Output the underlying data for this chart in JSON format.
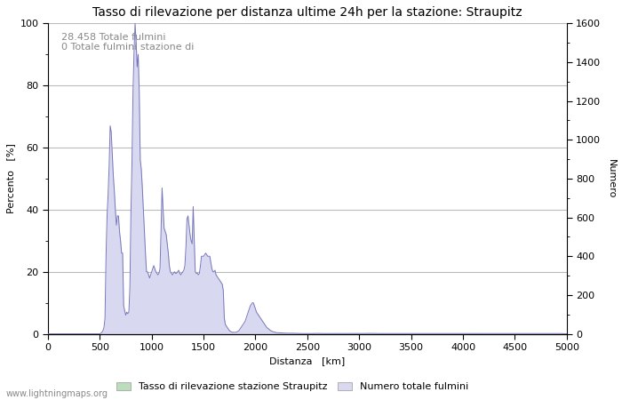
{
  "title": "Tasso di rilevazione per distanza ultime 24h per la stazione: Straupitz",
  "xlabel": "Distanza   [km]",
  "ylabel_left": "Percento   [%]",
  "ylabel_right": "Numero",
  "annotation_line1": "28.458 Totale fulmini",
  "annotation_line2": "0 Totale fulmini stazione di",
  "xlim": [
    0,
    5000
  ],
  "ylim_left": [
    0,
    100
  ],
  "ylim_right": [
    0,
    1600
  ],
  "xticks": [
    0,
    500,
    1000,
    1500,
    2000,
    2500,
    3000,
    3500,
    4000,
    4500,
    5000
  ],
  "yticks_left": [
    0,
    20,
    40,
    60,
    80,
    100
  ],
  "yticks_right": [
    0,
    200,
    400,
    600,
    800,
    1000,
    1200,
    1400,
    1600
  ],
  "background_color": "#ffffff",
  "grid_color": "#bbbbbb",
  "line_color": "#7777bb",
  "fill_color_blue": "#d8d8f0",
  "fill_color_green": "#bbddbb",
  "legend_label_green": "Tasso di rilevazione stazione Straupitz",
  "legend_label_blue": "Numero totale fulmini",
  "watermark": "www.lightningmaps.org",
  "title_fontsize": 10,
  "label_fontsize": 8,
  "tick_fontsize": 8,
  "annot_fontsize": 8,
  "percent_data": [
    [
      0,
      0
    ],
    [
      10,
      0
    ],
    [
      20,
      0
    ],
    [
      30,
      0
    ],
    [
      40,
      0
    ],
    [
      50,
      0
    ],
    [
      60,
      0
    ],
    [
      70,
      0
    ],
    [
      80,
      0
    ],
    [
      90,
      0
    ],
    [
      100,
      0
    ],
    [
      110,
      0
    ],
    [
      120,
      0
    ],
    [
      130,
      0
    ],
    [
      140,
      0
    ],
    [
      150,
      0
    ],
    [
      160,
      0
    ],
    [
      170,
      0
    ],
    [
      180,
      0
    ],
    [
      190,
      0
    ],
    [
      200,
      0
    ],
    [
      210,
      0
    ],
    [
      220,
      0
    ],
    [
      230,
      0
    ],
    [
      240,
      0
    ],
    [
      250,
      0
    ],
    [
      260,
      0
    ],
    [
      270,
      0
    ],
    [
      280,
      0
    ],
    [
      290,
      0
    ],
    [
      300,
      0
    ],
    [
      310,
      0
    ],
    [
      320,
      0
    ],
    [
      330,
      0
    ],
    [
      340,
      0
    ],
    [
      350,
      0
    ],
    [
      360,
      0
    ],
    [
      370,
      0
    ],
    [
      380,
      0
    ],
    [
      390,
      0
    ],
    [
      400,
      0
    ],
    [
      410,
      0
    ],
    [
      420,
      0
    ],
    [
      430,
      0
    ],
    [
      440,
      0
    ],
    [
      450,
      0
    ],
    [
      460,
      0
    ],
    [
      470,
      0
    ],
    [
      480,
      0
    ],
    [
      490,
      0
    ],
    [
      500,
      0
    ],
    [
      510,
      0.2
    ],
    [
      520,
      0.5
    ],
    [
      530,
      1.0
    ],
    [
      540,
      2.0
    ],
    [
      550,
      5.0
    ],
    [
      560,
      25.0
    ],
    [
      570,
      38.0
    ],
    [
      580,
      45.0
    ],
    [
      590,
      54.0
    ],
    [
      600,
      67.0
    ],
    [
      610,
      65.0
    ],
    [
      620,
      58.0
    ],
    [
      630,
      51.0
    ],
    [
      640,
      46.0
    ],
    [
      650,
      40.0
    ],
    [
      660,
      35.0
    ],
    [
      670,
      38.0
    ],
    [
      680,
      38.0
    ],
    [
      690,
      33.0
    ],
    [
      700,
      30.0
    ],
    [
      710,
      26.0
    ],
    [
      720,
      26.0
    ],
    [
      730,
      9.0
    ],
    [
      740,
      7.5
    ],
    [
      750,
      6.0
    ],
    [
      760,
      7.0
    ],
    [
      770,
      6.5
    ],
    [
      780,
      7.0
    ],
    [
      790,
      15.0
    ],
    [
      800,
      39.0
    ],
    [
      810,
      55.0
    ],
    [
      820,
      78.0
    ],
    [
      830,
      91.0
    ],
    [
      840,
      100.0
    ],
    [
      850,
      94.0
    ],
    [
      860,
      86.0
    ],
    [
      870,
      90.0
    ],
    [
      880,
      78.0
    ],
    [
      890,
      56.0
    ],
    [
      900,
      53.0
    ],
    [
      910,
      47.0
    ],
    [
      920,
      40.0
    ],
    [
      930,
      33.0
    ],
    [
      940,
      26.0
    ],
    [
      950,
      20.0
    ],
    [
      960,
      20.0
    ],
    [
      970,
      19.0
    ],
    [
      980,
      18.0
    ],
    [
      990,
      19.0
    ],
    [
      1000,
      20.0
    ],
    [
      1010,
      21.0
    ],
    [
      1020,
      22.0
    ],
    [
      1030,
      21.0
    ],
    [
      1040,
      20.0
    ],
    [
      1050,
      19.5
    ],
    [
      1060,
      19.0
    ],
    [
      1070,
      19.5
    ],
    [
      1080,
      21.0
    ],
    [
      1090,
      33.0
    ],
    [
      1100,
      47.0
    ],
    [
      1110,
      40.0
    ],
    [
      1120,
      34.0
    ],
    [
      1130,
      33.0
    ],
    [
      1140,
      32.0
    ],
    [
      1150,
      29.0
    ],
    [
      1160,
      26.0
    ],
    [
      1170,
      22.0
    ],
    [
      1180,
      20.0
    ],
    [
      1190,
      19.5
    ],
    [
      1200,
      19.0
    ],
    [
      1210,
      19.5
    ],
    [
      1220,
      20.0
    ],
    [
      1230,
      19.5
    ],
    [
      1240,
      19.5
    ],
    [
      1250,
      20.0
    ],
    [
      1260,
      20.5
    ],
    [
      1270,
      19.5
    ],
    [
      1280,
      19.0
    ],
    [
      1290,
      19.5
    ],
    [
      1300,
      20.0
    ],
    [
      1310,
      20.5
    ],
    [
      1320,
      22.0
    ],
    [
      1330,
      28.0
    ],
    [
      1340,
      37.0
    ],
    [
      1350,
      38.0
    ],
    [
      1360,
      35.0
    ],
    [
      1370,
      32.0
    ],
    [
      1380,
      30.0
    ],
    [
      1390,
      29.0
    ],
    [
      1400,
      41.0
    ],
    [
      1410,
      30.0
    ],
    [
      1420,
      20.0
    ],
    [
      1430,
      19.5
    ],
    [
      1440,
      19.5
    ],
    [
      1450,
      19.0
    ],
    [
      1460,
      19.5
    ],
    [
      1470,
      22.0
    ],
    [
      1480,
      25.0
    ],
    [
      1490,
      25.0
    ],
    [
      1500,
      25.0
    ],
    [
      1510,
      25.5
    ],
    [
      1520,
      26.0
    ],
    [
      1530,
      25.5
    ],
    [
      1540,
      25.0
    ],
    [
      1550,
      25.0
    ],
    [
      1560,
      25.0
    ],
    [
      1570,
      23.0
    ],
    [
      1580,
      21.0
    ],
    [
      1590,
      20.0
    ],
    [
      1600,
      20.0
    ],
    [
      1610,
      20.5
    ],
    [
      1620,
      19.0
    ],
    [
      1630,
      18.5
    ],
    [
      1640,
      18.0
    ],
    [
      1650,
      17.5
    ],
    [
      1660,
      17.0
    ],
    [
      1670,
      16.5
    ],
    [
      1680,
      16.0
    ],
    [
      1690,
      14.0
    ],
    [
      1700,
      5.0
    ],
    [
      1710,
      3.0
    ],
    [
      1720,
      2.5
    ],
    [
      1730,
      2.0
    ],
    [
      1740,
      1.5
    ],
    [
      1750,
      1.0
    ],
    [
      1760,
      0.8
    ],
    [
      1770,
      0.6
    ],
    [
      1780,
      0.5
    ],
    [
      1790,
      0.5
    ],
    [
      1800,
      0.5
    ],
    [
      1810,
      0.5
    ],
    [
      1820,
      0.6
    ],
    [
      1830,
      0.8
    ],
    [
      1840,
      1.0
    ],
    [
      1850,
      1.5
    ],
    [
      1860,
      2.0
    ],
    [
      1870,
      2.5
    ],
    [
      1880,
      3.0
    ],
    [
      1890,
      3.5
    ],
    [
      1900,
      4.0
    ],
    [
      1910,
      5.0
    ],
    [
      1920,
      6.0
    ],
    [
      1930,
      7.0
    ],
    [
      1940,
      8.0
    ],
    [
      1950,
      9.0
    ],
    [
      1960,
      9.5
    ],
    [
      1970,
      10.0
    ],
    [
      1980,
      10.0
    ],
    [
      1990,
      9.0
    ],
    [
      2000,
      8.0
    ],
    [
      2010,
      7.0
    ],
    [
      2020,
      6.5
    ],
    [
      2030,
      6.0
    ],
    [
      2040,
      5.5
    ],
    [
      2050,
      5.0
    ],
    [
      2060,
      4.5
    ],
    [
      2070,
      4.0
    ],
    [
      2080,
      3.5
    ],
    [
      2090,
      3.0
    ],
    [
      2100,
      2.5
    ],
    [
      2110,
      2.0
    ],
    [
      2120,
      1.8
    ],
    [
      2130,
      1.5
    ],
    [
      2140,
      1.2
    ],
    [
      2150,
      1.0
    ],
    [
      2160,
      0.8
    ],
    [
      2170,
      0.7
    ],
    [
      2180,
      0.6
    ],
    [
      2190,
      0.5
    ],
    [
      2200,
      0.4
    ],
    [
      2250,
      0.3
    ],
    [
      2300,
      0.2
    ],
    [
      2350,
      0.2
    ],
    [
      2400,
      0.15
    ],
    [
      2450,
      0.1
    ],
    [
      2500,
      0.1
    ],
    [
      2550,
      0.1
    ],
    [
      2600,
      0.15
    ],
    [
      2650,
      0.1
    ],
    [
      2700,
      0.1
    ],
    [
      2750,
      0.1
    ],
    [
      2800,
      0.1
    ],
    [
      2850,
      0.1
    ],
    [
      2900,
      0.1
    ],
    [
      2950,
      0.1
    ],
    [
      3000,
      0.1
    ],
    [
      3050,
      0.12
    ],
    [
      3100,
      0.15
    ],
    [
      3150,
      0.12
    ],
    [
      3200,
      0.1
    ],
    [
      3250,
      0.1
    ],
    [
      3300,
      0.1
    ],
    [
      3350,
      0.1
    ],
    [
      3400,
      0.1
    ],
    [
      3450,
      0.1
    ],
    [
      3500,
      0.1
    ],
    [
      3550,
      0.1
    ],
    [
      3600,
      0.1
    ],
    [
      3650,
      0.1
    ],
    [
      3700,
      0.1
    ],
    [
      3750,
      0.1
    ],
    [
      3800,
      0.1
    ],
    [
      3850,
      0.1
    ],
    [
      3900,
      0.1
    ],
    [
      3950,
      0.1
    ],
    [
      4000,
      0.1
    ],
    [
      4050,
      0.1
    ],
    [
      4100,
      0.1
    ],
    [
      4150,
      0.12
    ],
    [
      4200,
      0.1
    ],
    [
      4250,
      0.1
    ],
    [
      4300,
      0.1
    ],
    [
      4350,
      0.1
    ],
    [
      4400,
      0.1
    ],
    [
      4450,
      0.1
    ],
    [
      4500,
      0.1
    ],
    [
      4550,
      0.1
    ],
    [
      4600,
      0.1
    ],
    [
      4650,
      0.1
    ],
    [
      4700,
      0.1
    ],
    [
      4750,
      0.1
    ],
    [
      4800,
      0.1
    ],
    [
      4850,
      0.1
    ],
    [
      4900,
      0.1
    ],
    [
      4950,
      0.1
    ],
    [
      5000,
      0
    ]
  ]
}
